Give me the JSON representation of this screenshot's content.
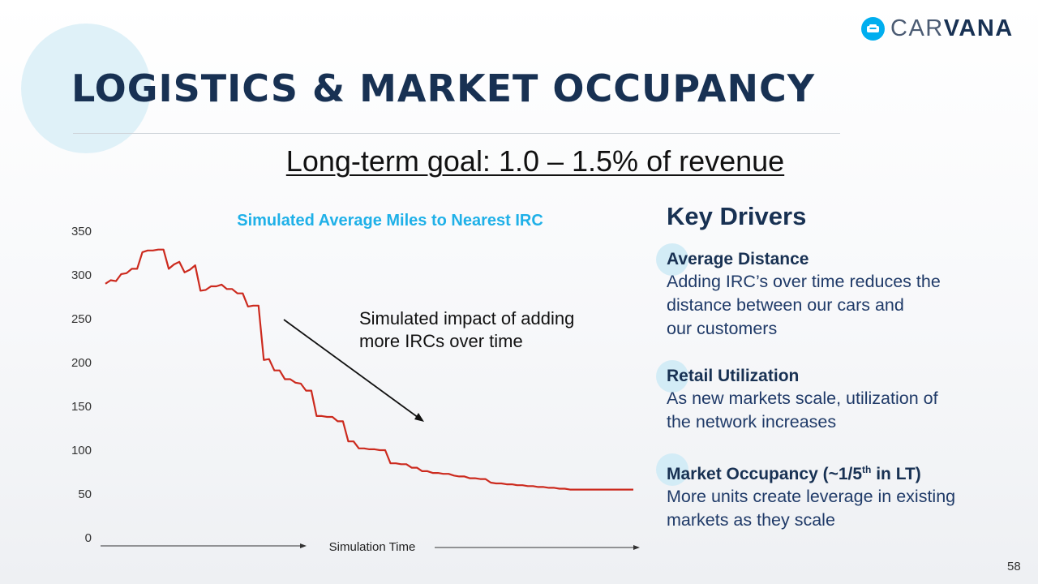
{
  "brand": {
    "logo_text_light": "CAR",
    "logo_text_bold": "VANA",
    "logo_icon": "car-icon"
  },
  "title": "LOGISTICS & MARKET OCCUPANCY",
  "goal": "Long-term goal: 1.0 – 1.5% of revenue",
  "colors": {
    "navy": "#183153",
    "accent": "#00aeef",
    "line": "#cc2a1e"
  },
  "chart_data": {
    "type": "line",
    "title": "Simulated Average Miles to Nearest IRC",
    "xlabel": "Simulation Time",
    "ylabel": "",
    "ylim": [
      0,
      350
    ],
    "yticks": [
      0,
      50,
      100,
      150,
      200,
      250,
      300,
      350
    ],
    "annotation": "Simulated impact of adding more IRCs over time",
    "annotation_lines": [
      "Simulated impact of adding",
      "more IRCs over time"
    ],
    "xlim": [
      0,
      100
    ],
    "series": [
      {
        "name": "Average miles",
        "x": [
          0,
          1,
          2,
          3,
          4,
          5,
          6,
          7,
          8,
          9,
          10,
          11,
          12,
          13,
          14,
          15,
          16,
          17,
          18,
          19,
          20,
          21,
          22,
          23,
          24,
          25,
          26,
          27,
          28,
          29,
          30,
          31,
          32,
          33,
          34,
          35,
          36,
          37,
          38,
          39,
          40,
          41,
          42,
          43,
          44,
          45,
          46,
          47,
          48,
          49,
          50,
          51,
          52,
          53,
          54,
          55,
          56,
          57,
          58,
          59,
          60,
          61,
          62,
          63,
          64,
          65,
          66,
          67,
          68,
          69,
          70,
          71,
          72,
          73,
          74,
          75,
          76,
          77,
          78,
          79,
          80,
          81,
          82,
          83,
          84,
          85,
          86,
          87,
          88,
          89,
          90,
          91,
          92,
          93,
          94,
          95,
          96,
          97,
          98,
          99,
          100
        ],
        "values": [
          290,
          294,
          293,
          301,
          302,
          307,
          307,
          326,
          328,
          328,
          329,
          329,
          307,
          312,
          315,
          303,
          306,
          311,
          282,
          283,
          287,
          287,
          289,
          284,
          284,
          279,
          279,
          264,
          265,
          265,
          203,
          204,
          191,
          191,
          181,
          181,
          177,
          176,
          168,
          168,
          139,
          139,
          138,
          138,
          133,
          133,
          110,
          110,
          102,
          102,
          101,
          101,
          100,
          100,
          85,
          85,
          84,
          84,
          80,
          80,
          76,
          76,
          74,
          74,
          73,
          73,
          71,
          70,
          70,
          68,
          68,
          67,
          67,
          63,
          62,
          62,
          61,
          61,
          60,
          60,
          59,
          59,
          58,
          58,
          57,
          57,
          56,
          56,
          55,
          55,
          55,
          55,
          55,
          55,
          55,
          55,
          55,
          55,
          55,
          55,
          55
        ]
      }
    ]
  },
  "drivers": {
    "title": "Key Drivers",
    "items": [
      {
        "heading": "Average Distance",
        "lines": [
          "Adding IRC’s over time reduces the",
          "distance between our cars and",
          "our customers"
        ]
      },
      {
        "heading": "Retail Utilization",
        "lines": [
          "As new markets scale, utilization of",
          "the network increases"
        ]
      },
      {
        "heading_main": "Market Occupancy (~1/5",
        "heading_sup": "th",
        "heading_tail": " in LT)",
        "lines": [
          "More units create leverage in existing",
          "markets as they scale"
        ]
      }
    ]
  },
  "page_number": "58"
}
